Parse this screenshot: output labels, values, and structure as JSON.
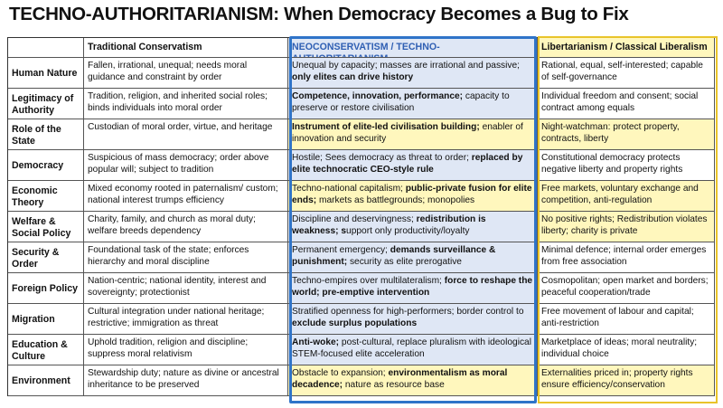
{
  "title": "TECHNO-AUTHORITARIANISM: When Democracy Becomes a Bug to Fix",
  "columns": [
    "",
    "Traditional Conservatism",
    "NEOCONSERVATISM / TECHNO-AUTHORITARIANISM",
    "Libertarianism / Classical Liberalism"
  ],
  "colors": {
    "neo_accent": "#2f74c8",
    "neo_fill": "#dfe7f5",
    "highlight": "#fff7bd",
    "lib_accent": "#e9c42a"
  },
  "rows": [
    {
      "label": "Human Nature",
      "trad": "Fallen, irrational, unequal; needs moral guidance and constraint by order",
      "neo": [
        {
          "t": "Unequal by capacity; masses are irrational and passive; "
        },
        {
          "t": "only elites can drive history",
          "b": true
        }
      ],
      "lib": "Rational, equal, self-interested; capable of self-governance",
      "hl_neo": false,
      "hl_lib": false
    },
    {
      "label": "Legitimacy of Authority",
      "trad": "Tradition, religion, and inherited social roles; binds individuals into moral order",
      "neo": [
        {
          "t": "Competence, innovation, performance;",
          "b": true
        },
        {
          "t": " capacity to preserve or restore civilisation"
        }
      ],
      "lib": "Individual freedom and consent; social contract among equals",
      "hl_neo": false,
      "hl_lib": false
    },
    {
      "label": "Role of the State",
      "trad": "Custodian of moral order, virtue, and heritage",
      "neo": [
        {
          "t": "Instrument of elite-led civilisation building;",
          "b": true
        },
        {
          "t": " enabler of innovation and security"
        }
      ],
      "lib": "Night-watchman: protect property, contracts, liberty",
      "hl_neo": true,
      "hl_lib": true
    },
    {
      "label": "Democracy",
      "trad": "Suspicious of mass democracy; order above popular will; subject to tradition",
      "neo": [
        {
          "t": "Hostile; Sees democracy as threat to order; "
        },
        {
          "t": "replaced by elite technocratic CEO-style rule",
          "b": true
        }
      ],
      "lib": "Constitutional democracy protects negative liberty and property rights",
      "hl_neo": false,
      "hl_lib": false
    },
    {
      "label": "Economic Theory",
      "trad": "Mixed economy rooted in paternalism/ custom; national interest trumps efficiency",
      "neo": [
        {
          "t": "Techno-national capitalism; "
        },
        {
          "t": "public-private fusion for elite ends;",
          "b": true
        },
        {
          "t": " markets as battlegrounds; monopolies"
        }
      ],
      "lib": "Free markets, voluntary exchange and competition, anti-regulation",
      "hl_neo": true,
      "hl_lib": true
    },
    {
      "label": "Welfare & Social Policy",
      "trad": "Charity, family, and church as moral duty; welfare breeds dependency",
      "neo": [
        {
          "t": "Discipline and deservingness; "
        },
        {
          "t": "redistribution is weakness; s",
          "b": true
        },
        {
          "t": "upport only productivity/loyalty"
        }
      ],
      "lib": "No positive rights; Redistribution violates liberty; charity is private",
      "hl_neo": false,
      "hl_lib": true
    },
    {
      "label": "Security & Order",
      "trad": "Foundational task of the state; enforces hierarchy and moral discipline",
      "neo": [
        {
          "t": "Permanent emergency; "
        },
        {
          "t": "demands surveillance & punishment;",
          "b": true
        },
        {
          "t": " security as elite prerogative"
        }
      ],
      "lib": "Minimal defence; internal order emerges from free association",
      "hl_neo": false,
      "hl_lib": false
    },
    {
      "label": "Foreign Policy",
      "trad": "Nation-centric; national identity, interest and sovereignty; protectionist",
      "neo": [
        {
          "t": "Techno-empires over multilateralism; "
        },
        {
          "t": "force to reshape the world; pre-emptive intervention",
          "b": true
        }
      ],
      "lib": "Cosmopolitan; open market and borders; peaceful cooperation/trade",
      "hl_neo": false,
      "hl_lib": false
    },
    {
      "label": "Migration",
      "trad": "Cultural integration under national heritage; restrictive; immigration as threat",
      "neo": [
        {
          "t": "Stratified openness for high-performers; border control to "
        },
        {
          "t": "exclude surplus populations",
          "b": true
        }
      ],
      "lib": "Free movement of labour and capital; anti-restriction",
      "hl_neo": false,
      "hl_lib": false
    },
    {
      "label": "Education & Culture",
      "trad": "Uphold tradition, religion and discipline; suppress moral relativism",
      "neo": [
        {
          "t": "Anti-woke;",
          "b": true
        },
        {
          "t": " post-cultural, replace pluralism with ideological STEM-focused elite acceleration"
        }
      ],
      "lib": "Marketplace of ideas; moral neutrality; individual choice",
      "hl_neo": false,
      "hl_lib": false
    },
    {
      "label": "Environment",
      "trad": "Stewardship duty; nature as divine or ancestral inheritance to be preserved",
      "neo": [
        {
          "t": "Obstacle to expansion; "
        },
        {
          "t": "environmentalism as moral decadence;",
          "b": true
        },
        {
          "t": " nature as resource base"
        }
      ],
      "lib": "Externalities priced in; property rights ensure efficiency/conservation",
      "hl_neo": true,
      "hl_lib": true
    }
  ]
}
